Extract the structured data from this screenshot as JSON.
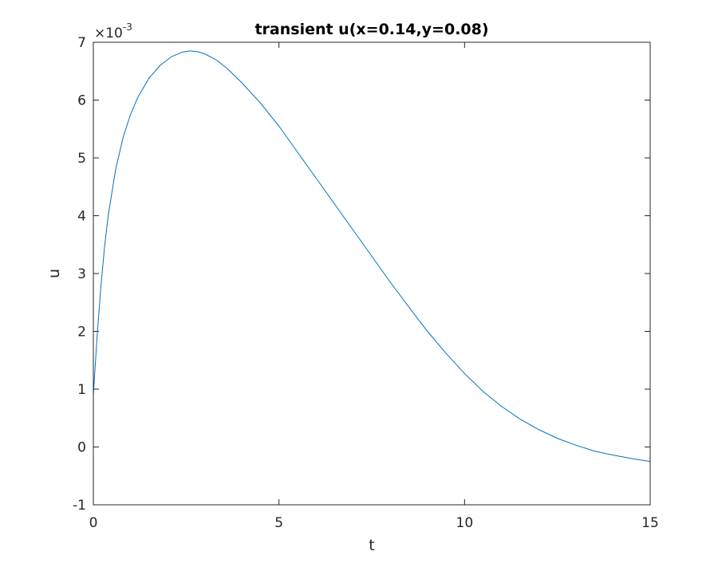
{
  "chart_data": {
    "type": "line",
    "title": "transient u(x=0.14,y=0.08)",
    "xlabel": "t",
    "ylabel": "u",
    "xlim": [
      0,
      15
    ],
    "ylim": [
      -1,
      7
    ],
    "y_multiplier": "×10",
    "y_multiplier_exponent": "-3",
    "x_ticks": [
      0,
      5,
      10,
      15
    ],
    "y_ticks": [
      -1,
      0,
      1,
      2,
      3,
      4,
      5,
      6,
      7
    ],
    "x_tick_labels": [
      "0",
      "5",
      "10",
      "15"
    ],
    "y_tick_labels": [
      "-1",
      "0",
      "1",
      "2",
      "3",
      "4",
      "5",
      "6",
      "7"
    ],
    "grid": false,
    "line_color": "#0072bd",
    "series": [
      {
        "x": [
          0,
          0.1,
          0.2,
          0.3,
          0.4,
          0.6,
          0.8,
          1.0,
          1.2,
          1.5,
          1.8,
          2.1,
          2.4,
          2.6,
          2.8,
          3.0,
          3.3,
          3.6,
          4.0,
          4.5,
          5.0,
          5.5,
          6.0,
          6.5,
          7.0,
          7.5,
          8.0,
          8.5,
          9.0,
          9.5,
          10.0,
          10.5,
          11.0,
          11.5,
          12.0,
          12.5,
          13.0,
          13.5,
          14.0,
          14.5,
          15.0
        ],
        "values": [
          0.9,
          1.9,
          2.75,
          3.45,
          4.0,
          4.8,
          5.35,
          5.75,
          6.05,
          6.38,
          6.6,
          6.75,
          6.83,
          6.85,
          6.84,
          6.8,
          6.7,
          6.55,
          6.3,
          5.95,
          5.55,
          5.1,
          4.65,
          4.2,
          3.75,
          3.3,
          2.85,
          2.42,
          2.0,
          1.62,
          1.27,
          0.96,
          0.7,
          0.48,
          0.3,
          0.15,
          0.03,
          -0.07,
          -0.14,
          -0.2,
          -0.25
        ]
      }
    ]
  }
}
